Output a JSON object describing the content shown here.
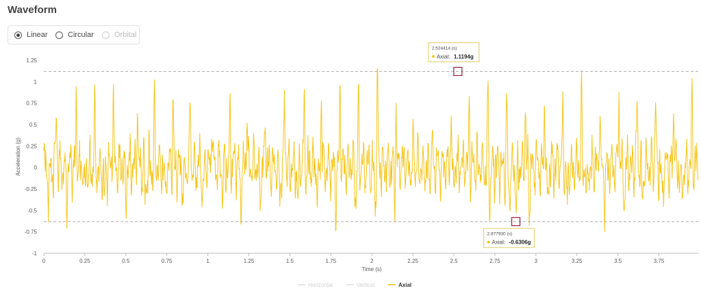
{
  "header": {
    "title": "Waveform"
  },
  "modes": [
    {
      "label": "Linear",
      "selected": true,
      "disabled": false
    },
    {
      "label": "Circular",
      "selected": false,
      "disabled": false
    },
    {
      "label": "Orbital",
      "selected": false,
      "disabled": true
    }
  ],
  "colors": {
    "axial": "#f5c518",
    "marker": "#9b1b3a",
    "grid": "#c8c8c8"
  },
  "chart_data": {
    "type": "line",
    "xlabel": "Time (s)",
    "ylabel": "Acceleration (g)",
    "xlim": [
      0,
      3.99
    ],
    "ylim": [
      -1,
      1.25
    ],
    "x_ticks": [
      "0",
      "0.25",
      "0.5",
      "0.75",
      "1",
      "1.25",
      "1.5",
      "1.75",
      "2",
      "2.25",
      "2.5",
      "2.75",
      "3",
      "3.25",
      "3.5",
      "3.75"
    ],
    "y_ticks": [
      "1.25",
      "1",
      "0.75",
      "0.5",
      "0.25",
      "0",
      "-0.25",
      "-0.5",
      "-0.75",
      "-1"
    ],
    "series": [
      {
        "name": "Horizontal",
        "visible": false,
        "color": "#dddddd"
      },
      {
        "name": "Vertical",
        "visible": false,
        "color": "#dddddd"
      },
      {
        "name": "Axial",
        "visible": true,
        "color": "#f5c518",
        "peak_times": [
          0.077,
          0.198,
          0.309,
          0.423,
          0.571,
          0.675,
          0.788,
          0.893,
          1.025,
          1.136,
          1.239,
          1.35,
          1.468,
          1.587,
          1.692,
          1.806,
          1.918,
          2.034,
          2.146,
          2.253,
          2.369,
          2.484,
          2.595,
          2.708,
          2.822,
          2.936,
          3.053,
          3.164,
          3.277,
          3.389,
          3.506,
          3.617,
          3.729,
          3.841,
          3.952
        ],
        "peak_values": [
          0.78,
          0.77,
          0.78,
          0.95,
          0.88,
          0.75,
          0.85,
          0.88,
          0.68,
          0.78,
          0.85,
          0.65,
          0.85,
          0.78,
          0.85,
          1.0,
          0.78,
          1.08,
          0.88,
          0.85,
          0.85,
          0.88,
          1.12,
          0.95,
          0.82,
          0.85,
          0.88,
          0.78,
          0.9,
          0.85,
          0.95,
          0.85,
          0.85,
          0.82,
          0.85
        ],
        "trough_times": [
          0.03,
          0.14,
          0.25,
          0.37,
          0.5,
          0.62,
          0.74,
          0.85,
          0.97,
          1.09,
          1.2,
          1.32,
          1.44,
          1.55,
          1.67,
          1.78,
          1.9,
          2.02,
          2.14,
          2.25,
          2.37,
          2.49,
          2.6,
          2.72,
          2.84,
          2.88,
          2.96,
          3.07,
          3.19,
          3.31,
          3.42,
          3.54,
          3.65,
          3.77,
          3.89
        ],
        "trough_values": [
          -0.48,
          -0.52,
          -0.5,
          -0.55,
          -0.5,
          -0.55,
          -0.55,
          -0.5,
          -0.55,
          -0.5,
          -0.55,
          -0.5,
          -0.5,
          -0.52,
          -0.5,
          -0.55,
          -0.5,
          -0.55,
          -0.52,
          -0.55,
          -0.5,
          -0.55,
          -0.52,
          -0.58,
          -0.52,
          -0.63,
          -0.55,
          -0.5,
          -0.52,
          -0.55,
          -0.5,
          -0.55,
          -0.52,
          -0.5,
          -0.55
        ]
      }
    ],
    "annotations": [
      {
        "time_label": "2.524414 (s)",
        "series": "Axial",
        "series_label": "Axial:",
        "value_label": "1.1194g",
        "x": 2.524414,
        "y": 1.1194
      },
      {
        "time_label": "2.877930 (s)",
        "series": "Axial",
        "series_label": "Axial:",
        "value_label": "-0.6306g",
        "x": 2.87793,
        "y": -0.6306
      }
    ],
    "legend_position": "bottom-center"
  }
}
